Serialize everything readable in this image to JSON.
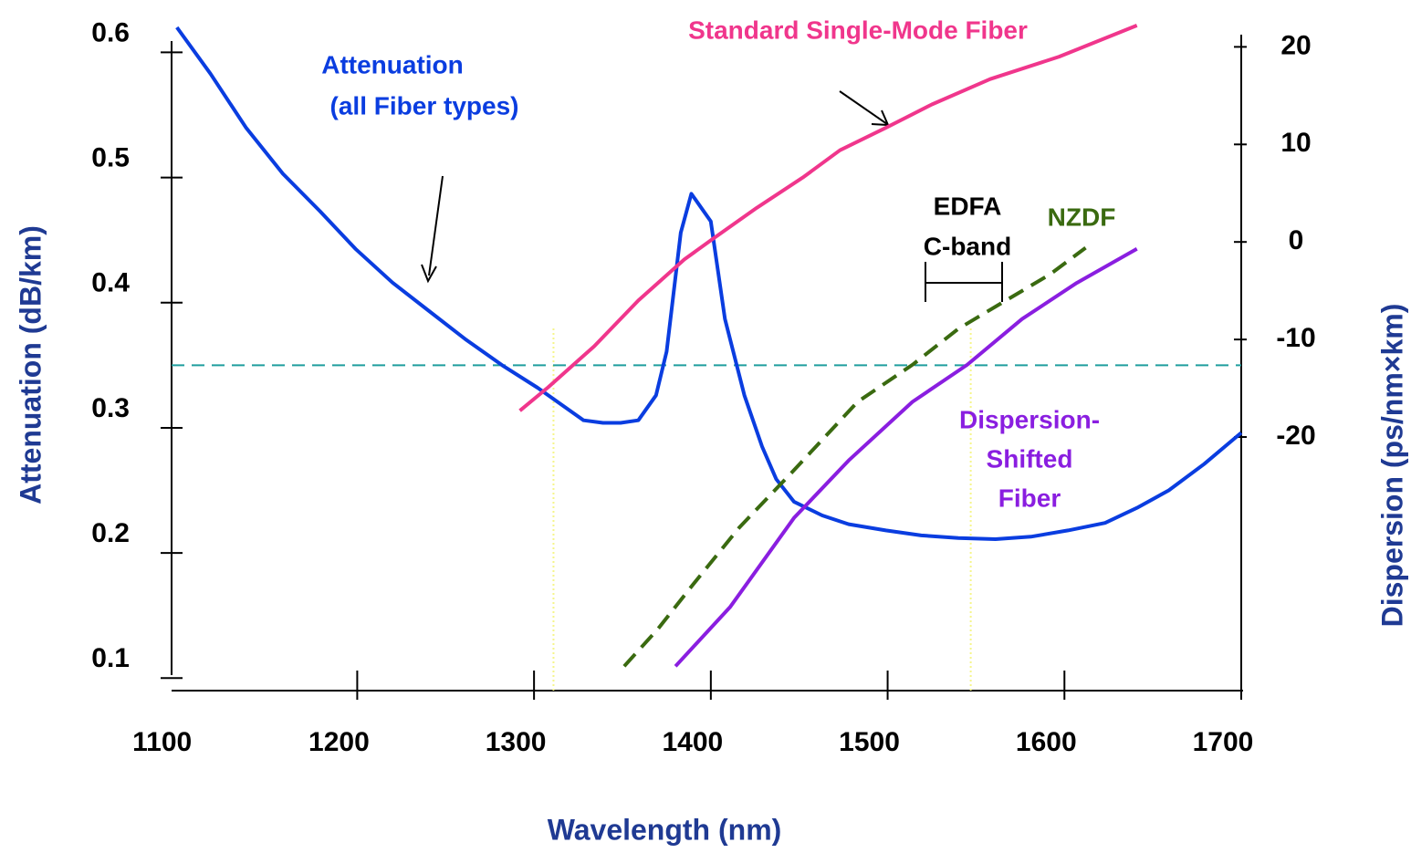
{
  "chart_data": {
    "type": "line",
    "xlabel": "Wavelength (nm)",
    "ylabel": "Attenuation (dB/km)",
    "y2label": "Dispersion (ps/nm×km)",
    "xlim": [
      1095,
      1700
    ],
    "xticks": [
      1100,
      1200,
      1300,
      1400,
      1500,
      1600,
      1700
    ],
    "ylim": [
      0.09,
      0.62
    ],
    "yticks": [
      0.1,
      0.2,
      0.3,
      0.4,
      0.5,
      0.6
    ],
    "y2lim": [
      -46,
      22
    ],
    "y2ticks": [
      -20,
      -10,
      0,
      10,
      20
    ],
    "hline": {
      "value": 0.35,
      "color": "#1f9e9e"
    },
    "vlines": {
      "values": [
        1311,
        1547
      ],
      "color": "#f5f58a"
    },
    "series": [
      {
        "color": "#0a3de0",
        "dashed": false,
        "x": [
          1098,
          1117,
          1137,
          1158,
          1179,
          1199,
          1220,
          1240,
          1261,
          1282,
          1302,
          1328,
          1339,
          1349,
          1359,
          1369,
          1375,
          1383,
          1389,
          1400,
          1408,
          1419,
          1429,
          1437,
          1447,
          1463,
          1478,
          1499,
          1519,
          1540,
          1561,
          1581,
          1602,
          1623,
          1641,
          1659,
          1679,
          1700
        ],
        "values": [
          0.62,
          0.583,
          0.54,
          0.503,
          0.473,
          0.443,
          0.416,
          0.394,
          0.371,
          0.35,
          0.332,
          0.306,
          0.304,
          0.304,
          0.306,
          0.326,
          0.361,
          0.456,
          0.487,
          0.465,
          0.387,
          0.326,
          0.285,
          0.259,
          0.241,
          0.23,
          0.223,
          0.218,
          0.214,
          0.212,
          0.211,
          0.213,
          0.218,
          0.224,
          0.236,
          0.25,
          0.271,
          0.296
        ]
      },
      {
        "color": "#f0368c",
        "dashed": false,
        "axis": "y2",
        "x": [
          1292,
          1308,
          1334,
          1359,
          1385,
          1401,
          1426,
          1452,
          1473,
          1499,
          1525,
          1558,
          1597,
          1641
        ],
        "values": [
          -17.3,
          -14.9,
          -10.7,
          -6.0,
          -1.8,
          0.3,
          3.5,
          6.6,
          9.4,
          11.7,
          14.1,
          16.7,
          19.0,
          22.2
        ]
      },
      {
        "color": "#3a6a10",
        "dashed": true,
        "axis": "y2",
        "x": [
          1351,
          1370,
          1390,
          1416,
          1447,
          1483,
          1514,
          1540,
          1566,
          1592,
          1612
        ],
        "values": [
          -43.5,
          -39.7,
          -35.1,
          -29.3,
          -23.4,
          -16.4,
          -12.6,
          -8.9,
          -6.1,
          -3.3,
          -0.6
        ]
      },
      {
        "color": "#8a1ee0",
        "dashed": false,
        "axis": "y2",
        "x": [
          1380,
          1411,
          1447,
          1478,
          1514,
          1545,
          1576,
          1607,
          1641
        ],
        "values": [
          -43.5,
          -37.4,
          -28.3,
          -22.4,
          -16.4,
          -12.6,
          -7.9,
          -4.2,
          -0.7
        ]
      }
    ],
    "annotations": [
      {
        "text": "Attenuation",
        "color": "#0a3de0"
      },
      {
        "text": "(all Fiber types)",
        "color": "#0a3de0"
      },
      {
        "text": "Standard Single-Mode Fiber",
        "color": "#f0368c"
      },
      {
        "text": "EDFA",
        "color": "#000000"
      },
      {
        "text": "C-band",
        "color": "#000000"
      },
      {
        "text": "NZDF",
        "color": "#3a6a10"
      },
      {
        "text": "Dispersion-",
        "color": "#8a1ee0"
      },
      {
        "text": "Shifted",
        "color": "#8a1ee0"
      },
      {
        "text": "Fiber",
        "color": "#8a1ee0"
      }
    ]
  }
}
